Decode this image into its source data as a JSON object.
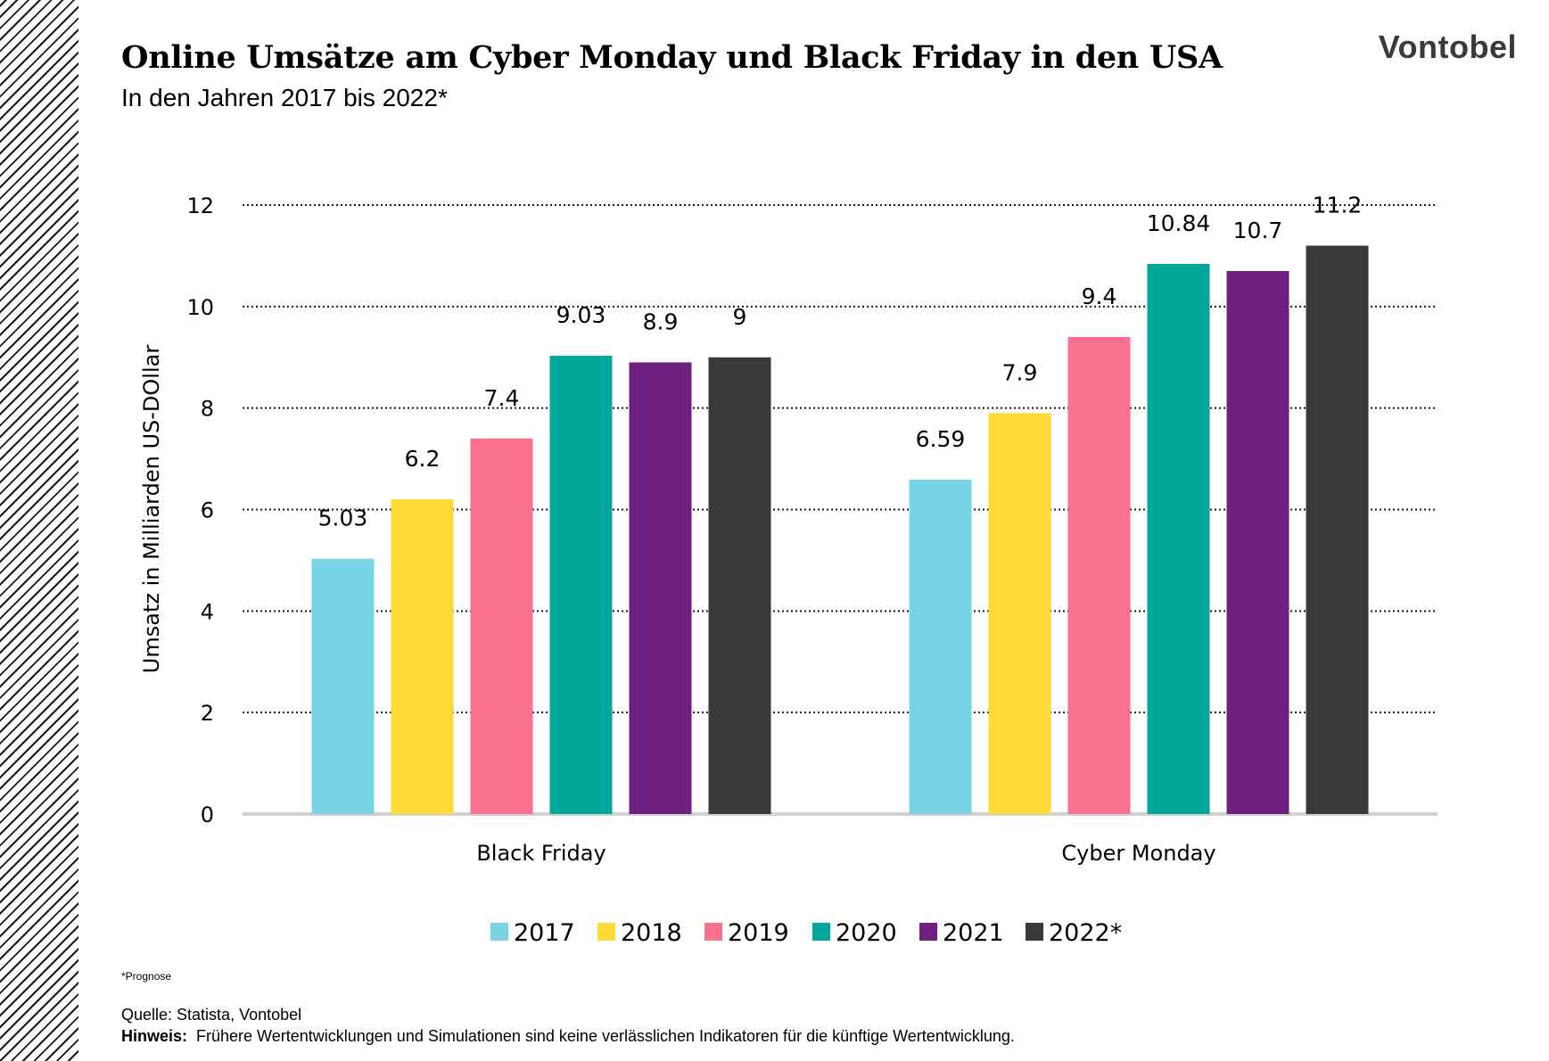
{
  "header": {
    "title": "Online Umsätze am Cyber Monday und Black Friday in den USA",
    "subtitle": "In den Jahren 2017 bis 2022*",
    "logo_text": "Vontobel"
  },
  "chart_data": {
    "type": "bar",
    "categories": [
      "Black Friday",
      "Cyber Monday"
    ],
    "series": [
      {
        "name": "2017",
        "color": "#7ad3e4",
        "values": [
          5.03,
          6.59
        ]
      },
      {
        "name": "2018",
        "color": "#fdda37",
        "values": [
          6.2,
          7.9
        ]
      },
      {
        "name": "2019",
        "color": "#fa7090",
        "values": [
          7.4,
          9.4
        ]
      },
      {
        "name": "2020",
        "color": "#00a79a",
        "values": [
          9.03,
          10.84
        ]
      },
      {
        "name": "2021",
        "color": "#6f1f80",
        "values": [
          8.9,
          10.7
        ]
      },
      {
        "name": "2022*",
        "color": "#393939",
        "values": [
          9,
          11.2
        ]
      }
    ],
    "data_labels": [
      [
        "5.03",
        "6.59"
      ],
      [
        "6.2",
        "7.9"
      ],
      [
        "7.4",
        "9.4"
      ],
      [
        "9.03",
        "10.84"
      ],
      [
        "8.9",
        "10.7"
      ],
      [
        "9",
        "11.2"
      ]
    ],
    "ylabel": "Umsatz in Milliarden US-DOllar",
    "xlabel": "",
    "ylim": [
      0,
      12
    ],
    "yticks": [
      "0",
      "2",
      "4",
      "6",
      "8",
      "10",
      "12"
    ],
    "grid": "dotted horizontal",
    "legend": "bottom"
  },
  "footer": {
    "footnote": "*Prognose",
    "source": "Quelle: Statista, Vontobel",
    "hint_label": "Hinweis:",
    "hint_text": "Frühere Wertentwicklungen und Simulationen sind keine verlässlichen Indikatoren für die künftige Wertentwicklung."
  }
}
